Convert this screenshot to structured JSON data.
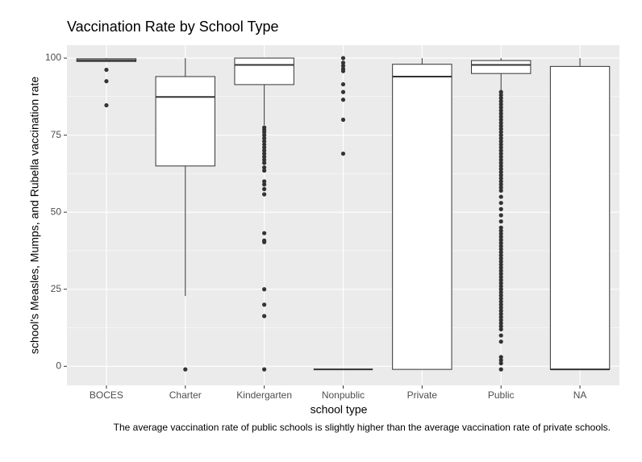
{
  "chart_data": {
    "type": "box",
    "title": "Vaccination Rate by School Type",
    "x_label": "school type",
    "y_label": "school's Measles, Mumps, and Rubella vaccination rate",
    "caption": "The average vaccination rate of public schools is slightly higher than the average vaccination rate of private schools.",
    "categories": [
      "BOCES",
      "Charter",
      "Kindergarten",
      "Nonpublic",
      "Private",
      "Public",
      "NA"
    ],
    "boxes": [
      {
        "min": 98.9,
        "q1": 98.9,
        "median": 99.3,
        "q3": 99.8,
        "max": 100,
        "outliers": [
          96.2,
          92.5,
          84.7
        ]
      },
      {
        "min": 22.8,
        "q1": 65,
        "median": 87.4,
        "q3": 94,
        "max": 100,
        "outliers": [
          -1
        ]
      },
      {
        "min": 78.3,
        "q1": 91.4,
        "median": 97.8,
        "q3": 100,
        "max": 100,
        "outliers": [
          77.5,
          76.8,
          76,
          75,
          74,
          73,
          72,
          71,
          70,
          69,
          68,
          67,
          66,
          64.5,
          63.5,
          60,
          59,
          57.5,
          55.8,
          43.2,
          40.8,
          40.3,
          25,
          20,
          16.3,
          -1
        ]
      },
      {
        "min": -1,
        "q1": -1,
        "median": -1,
        "q3": -1,
        "max": -1,
        "outliers": [
          100,
          98.5,
          97.5,
          96.5,
          95.8,
          91.5,
          89,
          86.5,
          80,
          69
        ]
      },
      {
        "min": -1,
        "q1": -1,
        "median": 94,
        "q3": 98,
        "max": 100,
        "outliers": []
      },
      {
        "min": 89.3,
        "q1": 95,
        "median": 97.8,
        "q3": 99.2,
        "max": 100,
        "outliers": [
          89,
          88,
          87,
          86,
          85,
          84,
          83,
          82,
          81,
          80,
          79,
          78,
          77,
          76,
          75,
          74,
          73,
          72,
          71,
          70,
          69,
          68,
          67,
          66,
          65,
          64,
          63,
          62,
          61,
          60,
          59,
          58,
          57,
          55,
          53,
          51,
          49,
          47,
          45,
          44,
          43,
          42,
          41,
          40,
          39,
          38,
          37,
          36,
          35,
          34,
          33,
          32,
          31,
          30,
          29,
          28,
          27,
          26,
          25,
          24,
          23,
          22,
          21,
          20,
          19,
          18,
          17,
          16,
          15,
          14,
          13,
          12,
          10,
          8,
          3,
          2,
          1,
          -1
        ]
      },
      {
        "min": -1,
        "q1": -1,
        "median": -1,
        "q3": 97.3,
        "max": 100,
        "outliers": []
      }
    ],
    "ylim": [
      -6.2,
      104.2
    ],
    "yticks": [
      0,
      25,
      50,
      75,
      100
    ],
    "y_minor_grid": [
      12.5,
      37.5,
      62.5,
      87.5
    ],
    "grid": true,
    "box_fill": "#ffffff",
    "color": "#333333"
  }
}
